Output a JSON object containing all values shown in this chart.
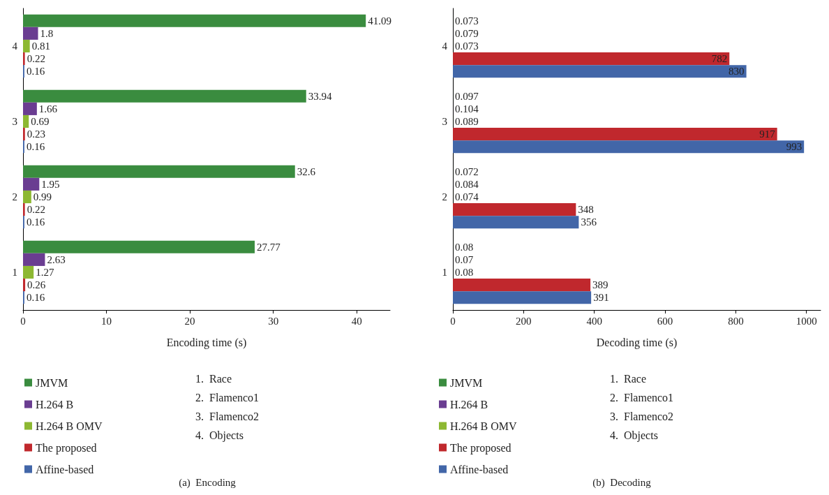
{
  "chart_data": [
    {
      "type": "bar",
      "orientation": "horizontal",
      "title": "(a)  Encoding",
      "xlabel": "Encoding time (s)",
      "categories": [
        "4",
        "3",
        "2",
        "1"
      ],
      "xlim": [
        0,
        44
      ],
      "xticks": [
        0,
        10,
        20,
        30,
        40
      ],
      "grid": false,
      "legend": "bottom",
      "data_labels": true,
      "series": [
        {
          "name": "JMVM",
          "color": "#3a8c3f",
          "values": [
            41.09,
            33.94,
            32.6,
            27.77
          ]
        },
        {
          "name": "H.264 B",
          "color": "#6a3d91",
          "values": [
            1.8,
            1.66,
            1.95,
            2.63
          ]
        },
        {
          "name": "H.264 B OMV",
          "color": "#8db832",
          "values": [
            0.81,
            0.69,
            0.99,
            1.27
          ]
        },
        {
          "name": "The proposed",
          "color": "#c0282d",
          "values": [
            0.22,
            0.23,
            0.22,
            0.26
          ]
        },
        {
          "name": "Affine-based",
          "color": "#4266a8",
          "values": [
            0.16,
            0.16,
            0.16,
            0.16
          ]
        }
      ],
      "annotations": [
        "1.  Race",
        "2.  Flamenco1",
        "3.  Flamenco2",
        "4.  Objects"
      ]
    },
    {
      "type": "bar",
      "orientation": "horizontal",
      "title": "(b)  Decoding",
      "xlabel": "Decoding time (s)",
      "categories": [
        "4",
        "3",
        "2",
        "1"
      ],
      "xlim": [
        0,
        1040
      ],
      "xticks": [
        0,
        200,
        400,
        600,
        800,
        1000
      ],
      "grid": false,
      "legend": "bottom",
      "data_labels": true,
      "series": [
        {
          "name": "JMVM",
          "color": "#3a8c3f",
          "values": [
            0.073,
            0.097,
            0.072,
            0.08
          ]
        },
        {
          "name": "H.264 B",
          "color": "#6a3d91",
          "values": [
            0.079,
            0.104,
            0.084,
            0.07
          ]
        },
        {
          "name": "H.264 B OMV",
          "color": "#8db832",
          "values": [
            0.073,
            0.089,
            0.074,
            0.08
          ]
        },
        {
          "name": "The proposed",
          "color": "#c0282d",
          "values": [
            782,
            917,
            348,
            389
          ]
        },
        {
          "name": "Affine-based",
          "color": "#4266a8",
          "values": [
            830,
            993,
            356,
            391
          ]
        }
      ],
      "annotations": [
        "1.  Race",
        "2.  Flamenco1",
        "3.  Flamenco2",
        "4.  Objects"
      ]
    }
  ]
}
